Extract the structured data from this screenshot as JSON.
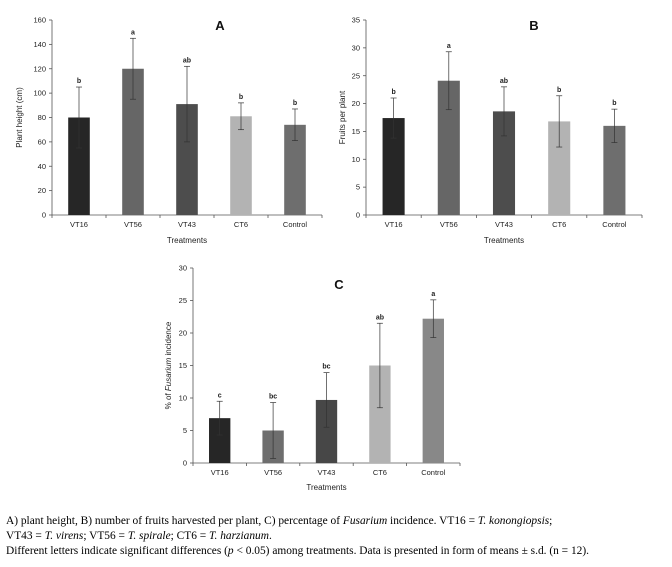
{
  "chart_data": [
    {
      "type": "bar",
      "panel_label": "A",
      "categories": [
        "VT16",
        "VT56",
        "VT43",
        "CT6",
        "Control"
      ],
      "values": [
        80,
        120,
        91,
        81,
        74
      ],
      "errors": [
        25,
        25,
        31,
        11,
        13
      ],
      "letters": [
        "b",
        "a",
        "ab",
        "b",
        "b"
      ],
      "colors": [
        "#262626",
        "#666666",
        "#4d4d4d",
        "#b3b3b3",
        "#6e6e6e"
      ],
      "xlabel": "Treatments",
      "ylabel": "Plant height (cm)",
      "ylim": [
        0,
        160
      ],
      "yticks": [
        0,
        20,
        40,
        60,
        80,
        100,
        120,
        140,
        160
      ],
      "grid": false,
      "legend": "none"
    },
    {
      "type": "bar",
      "panel_label": "B",
      "categories": [
        "VT16",
        "VT56",
        "VT43",
        "CT6",
        "Control"
      ],
      "values": [
        17.4,
        24.1,
        18.6,
        16.8,
        16.0
      ],
      "errors": [
        3.6,
        5.2,
        4.4,
        4.6,
        3.0
      ],
      "letters": [
        "b",
        "a",
        "ab",
        "b",
        "b"
      ],
      "colors": [
        "#262626",
        "#666666",
        "#4d4d4d",
        "#b3b3b3",
        "#6e6e6e"
      ],
      "xlabel": "Treatments",
      "ylabel": "Fruits per plant",
      "ylim": [
        0,
        35
      ],
      "yticks": [
        0,
        5,
        10,
        15,
        20,
        25,
        30,
        35
      ],
      "grid": false,
      "legend": "none"
    },
    {
      "type": "bar",
      "panel_label": "C",
      "categories": [
        "VT16",
        "VT56",
        "VT43",
        "CT6",
        "Control"
      ],
      "values": [
        6.9,
        5.0,
        9.7,
        15.0,
        22.2
      ],
      "errors": [
        2.6,
        4.3,
        4.2,
        6.5,
        2.9
      ],
      "letters": [
        "c",
        "bc",
        "bc",
        "ab",
        "a"
      ],
      "colors": [
        "#262626",
        "#6e6e6e",
        "#474747",
        "#b3b3b3",
        "#888888"
      ],
      "xlabel": "Treatments",
      "ylabel_prefix": "% of ",
      "ylabel_italic": "Fusarium",
      "ylabel_suffix": " incidence",
      "ylim": [
        0,
        30
      ],
      "yticks": [
        0,
        5,
        10,
        15,
        20,
        25,
        30
      ],
      "grid": false,
      "legend": "none"
    }
  ],
  "caption": {
    "line1_a": "A) plant height, B) number of fruits harvested per plant, C) percentage of ",
    "line1_fusarium": "Fusarium",
    "line1_b": " incidence. VT16 = ",
    "line1_konongiopsis": "T. konongiopsis",
    "line1_c": ";",
    "line2_a": "VT43 = ",
    "line2_virens": "T. virens",
    "line2_b": "; VT56 = ",
    "line2_spirale": "T. spirale",
    "line2_c": "; CT6 = ",
    "line2_harzianum": "T. harzianum",
    "line2_d": ".",
    "line3_a": "Different letters indicate significant differences (",
    "line3_p": "p",
    "line3_b": " < 0.05) among treatments. Data is presented in form of means ± s.d. (n = 12)."
  }
}
